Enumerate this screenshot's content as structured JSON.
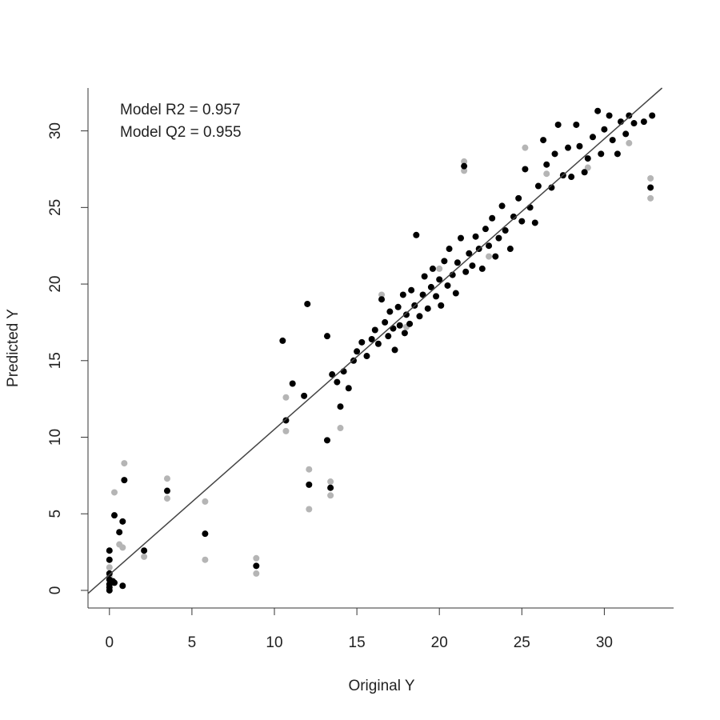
{
  "chart_data": {
    "type": "scatter",
    "xlabel": "Original Y",
    "ylabel": "Predicted Y",
    "annotations": [
      "Model R2 = 0.957",
      "Model Q2 = 0.955"
    ],
    "xlim": [
      -1.3,
      34.2
    ],
    "ylim": [
      -1.15,
      32.8
    ],
    "xticks": [
      0,
      5,
      10,
      15,
      20,
      25,
      30
    ],
    "yticks": [
      0,
      5,
      10,
      15,
      20,
      25,
      30
    ],
    "reference_line": {
      "color": "#444444",
      "x": [
        -1.3,
        33.5
      ],
      "y": [
        -0.2,
        32.8
      ]
    },
    "series": [
      {
        "color": "#b5b5b5",
        "x": [
          0,
          0,
          0.3,
          0.6,
          0.9,
          0.8,
          2.1,
          3.5,
          3.5,
          5.8,
          5.8,
          8.9,
          8.9,
          10.7,
          10.7,
          12.1,
          12.1,
          13.4,
          13.4,
          14.0,
          16.5,
          18.0,
          20.0,
          21.5,
          21.5,
          23.0,
          25.2,
          26.5,
          29.0,
          31.5,
          32.8,
          32.8
        ],
        "y": [
          0.9,
          1.5,
          6.4,
          3.0,
          8.3,
          2.8,
          2.2,
          7.3,
          6.0,
          5.8,
          2.0,
          2.1,
          1.1,
          10.4,
          12.6,
          7.9,
          5.3,
          7.1,
          6.2,
          10.6,
          19.3,
          17.2,
          21.0,
          28.0,
          27.4,
          21.8,
          28.9,
          27.2,
          27.6,
          29.2,
          26.9,
          25.6
        ]
      },
      {
        "color": "#000000",
        "x": [
          0,
          0,
          0,
          0,
          0,
          0,
          0,
          0.2,
          0.3,
          0.3,
          0.6,
          0.8,
          0.8,
          0.9,
          2.1,
          3.5,
          5.8,
          8.9,
          10.5,
          10.7,
          11.1,
          11.8,
          12.0,
          12.1,
          13.2,
          13.4,
          13.2,
          13.5,
          13.8,
          14.0,
          14.2,
          14.5,
          14.8,
          15.0,
          15.3,
          15.6,
          15.9,
          16.1,
          16.3,
          16.5,
          16.7,
          16.9,
          17.0,
          17.2,
          17.3,
          17.5,
          17.6,
          17.8,
          17.9,
          18.0,
          18.2,
          18.3,
          18.5,
          18.6,
          18.8,
          19.0,
          19.1,
          19.3,
          19.5,
          19.6,
          19.8,
          20.0,
          20.1,
          20.3,
          20.5,
          20.6,
          20.8,
          21.0,
          21.1,
          21.3,
          21.5,
          21.6,
          21.8,
          22.0,
          22.2,
          22.4,
          22.6,
          22.8,
          23.0,
          23.2,
          23.4,
          23.6,
          23.8,
          24.0,
          24.3,
          24.5,
          24.8,
          25.0,
          25.2,
          25.5,
          25.8,
          26.0,
          26.3,
          26.5,
          26.8,
          27.0,
          27.2,
          27.5,
          27.8,
          28.0,
          28.3,
          28.5,
          28.8,
          29.0,
          29.3,
          29.6,
          29.8,
          30.0,
          30.3,
          30.5,
          30.8,
          31.0,
          31.3,
          31.5,
          31.8,
          32.4,
          32.8,
          32.9
        ],
        "y": [
          0,
          0.2,
          0.4,
          0.7,
          1.1,
          2.0,
          2.6,
          0.6,
          0.5,
          4.9,
          3.8,
          4.5,
          0.3,
          7.2,
          2.6,
          6.5,
          3.7,
          1.6,
          16.3,
          11.1,
          13.5,
          12.7,
          18.7,
          6.9,
          9.8,
          6.7,
          16.6,
          14.1,
          13.6,
          12.0,
          14.3,
          13.2,
          15.0,
          15.6,
          16.2,
          15.3,
          16.4,
          17.0,
          16.1,
          19.0,
          17.5,
          16.6,
          18.2,
          17.1,
          15.7,
          18.5,
          17.3,
          19.3,
          16.8,
          18.0,
          17.4,
          19.6,
          18.6,
          23.2,
          17.9,
          19.3,
          20.5,
          18.4,
          19.8,
          21.0,
          19.2,
          20.3,
          18.6,
          21.5,
          19.9,
          22.3,
          20.6,
          19.4,
          21.4,
          23.0,
          27.7,
          20.8,
          22.0,
          21.2,
          23.1,
          22.3,
          21.0,
          23.6,
          22.5,
          24.3,
          21.8,
          23.0,
          25.1,
          23.5,
          22.3,
          24.4,
          25.6,
          24.1,
          27.5,
          25.0,
          24.0,
          26.4,
          29.4,
          27.8,
          26.3,
          28.5,
          30.4,
          27.1,
          28.9,
          27.0,
          30.4,
          29.0,
          27.3,
          28.2,
          29.6,
          31.3,
          28.5,
          30.1,
          31.0,
          29.4,
          28.5,
          30.6,
          29.8,
          31.0,
          30.5,
          30.6,
          26.3,
          31.0
        ]
      }
    ]
  }
}
